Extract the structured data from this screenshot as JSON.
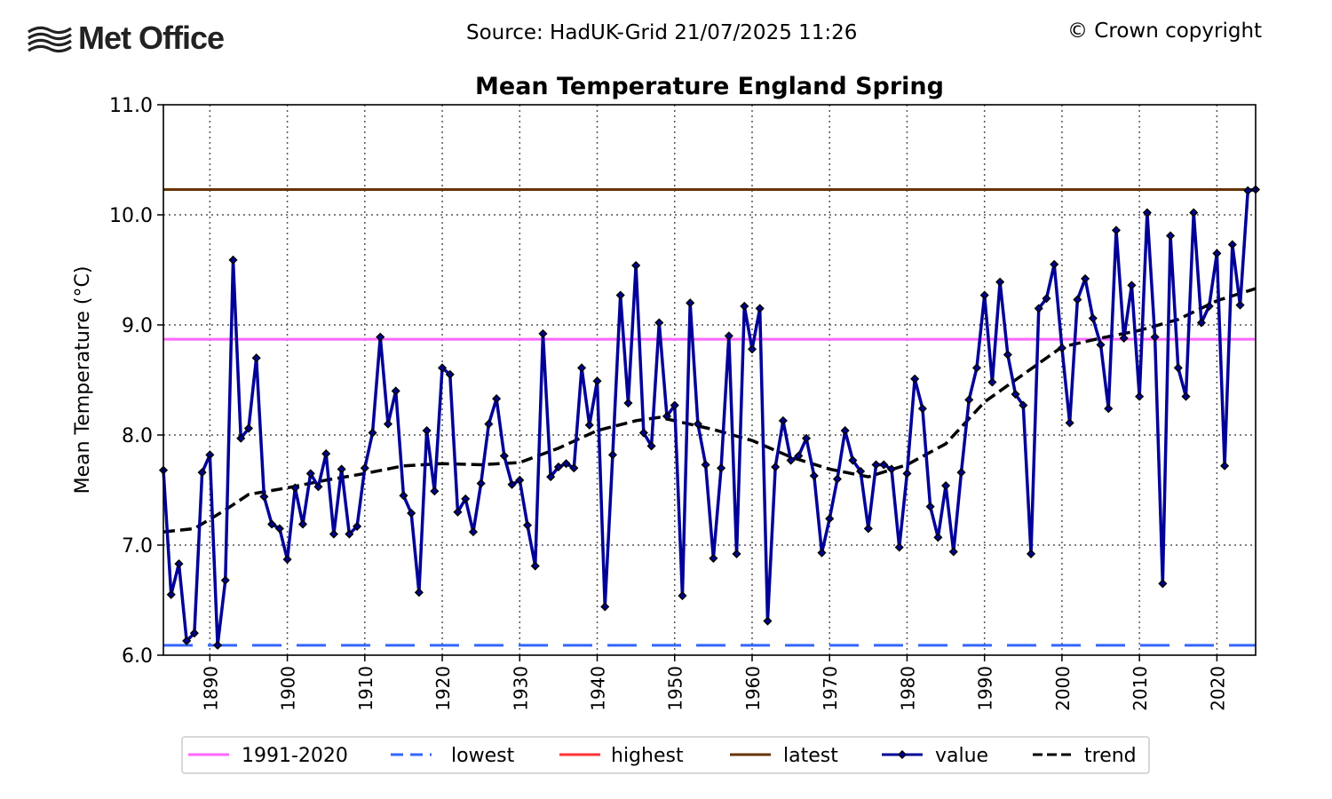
{
  "header": {
    "logo": "Met Office",
    "source": "Source: HadUK-Grid 21/07/2025 11:26",
    "copyright": "© Crown copyright"
  },
  "chart_data": {
    "type": "line",
    "title": "Mean Temperature England Spring",
    "xlabel": "",
    "ylabel": "Mean Temperature (°C)",
    "xlim": [
      1884,
      2025
    ],
    "ylim": [
      6.0,
      11.0
    ],
    "grid": true,
    "xticks": [
      1890,
      1900,
      1910,
      1920,
      1930,
      1940,
      1950,
      1960,
      1970,
      1980,
      1990,
      2000,
      2010,
      2020
    ],
    "yticks": [
      "6.0",
      "7.0",
      "8.0",
      "9.0",
      "10.0",
      "11.0"
    ],
    "legend_position": "bottom",
    "legend": [
      "1991-2020",
      "lowest",
      "highest",
      "latest",
      "value",
      "trend"
    ],
    "reference_lines": {
      "1991-2020": {
        "value": 8.87,
        "color": "#ff66ff",
        "style": "solid"
      },
      "lowest": {
        "value": 6.09,
        "color": "#3366ff",
        "style": "dashed"
      },
      "highest": {
        "value": 10.23,
        "color": "#ff3333",
        "style": "solid"
      },
      "latest": {
        "value": 10.23,
        "color": "#663300",
        "style": "solid"
      }
    },
    "series": [
      {
        "name": "value",
        "color": "#000099",
        "start_year": 1884,
        "values": [
          7.68,
          6.55,
          6.83,
          6.13,
          6.2,
          7.66,
          7.82,
          6.09,
          6.68,
          9.59,
          7.97,
          8.06,
          8.7,
          7.44,
          7.19,
          7.15,
          6.87,
          7.52,
          7.19,
          7.65,
          7.53,
          7.83,
          7.1,
          7.69,
          7.1,
          7.17,
          7.7,
          8.02,
          8.89,
          8.1,
          8.4,
          7.45,
          7.29,
          6.57,
          8.04,
          7.49,
          8.61,
          8.55,
          7.3,
          7.42,
          7.12,
          7.56,
          8.1,
          8.33,
          7.81,
          7.55,
          7.59,
          7.18,
          6.81,
          8.92,
          7.62,
          7.71,
          7.74,
          7.7,
          8.61,
          8.09,
          8.49,
          6.44,
          7.82,
          9.27,
          8.29,
          9.54,
          8.02,
          7.9,
          9.02,
          8.17,
          8.27,
          6.54,
          9.2,
          8.1,
          7.73,
          6.88,
          7.7,
          8.9,
          6.92,
          9.17,
          8.78,
          9.15,
          6.31,
          7.71,
          8.13,
          7.77,
          7.81,
          7.97,
          7.63,
          6.93,
          7.24,
          7.6,
          8.04,
          7.77,
          7.67,
          7.15,
          7.73,
          7.73,
          7.69,
          6.98,
          7.65,
          8.51,
          8.24,
          7.35,
          7.07,
          7.54,
          6.94,
          7.66,
          8.32,
          8.61,
          9.27,
          8.48,
          9.39,
          8.73,
          8.37,
          8.27,
          6.92,
          9.15,
          9.24,
          9.55,
          8.79,
          8.11,
          9.23,
          9.42,
          9.06,
          8.82,
          8.24,
          9.86,
          8.88,
          9.36,
          8.35,
          10.02,
          8.89,
          6.65,
          9.81,
          8.61,
          8.35,
          10.02,
          9.02,
          9.17,
          9.65,
          7.72,
          9.73,
          9.18,
          10.22,
          10.23
        ]
      },
      {
        "name": "trend",
        "color": "#000000",
        "style": "dashed",
        "x": [
          1884,
          1888,
          1892,
          1895,
          1900,
          1905,
          1910,
          1915,
          1920,
          1925,
          1930,
          1935,
          1940,
          1945,
          1948,
          1950,
          1955,
          1960,
          1965,
          1970,
          1975,
          1980,
          1985,
          1990,
          1995,
          2000,
          2005,
          2010,
          2015,
          2020,
          2025
        ],
        "values": [
          7.12,
          7.15,
          7.32,
          7.46,
          7.52,
          7.59,
          7.65,
          7.72,
          7.74,
          7.73,
          7.75,
          7.88,
          8.04,
          8.13,
          8.16,
          8.13,
          8.05,
          7.95,
          7.8,
          7.69,
          7.62,
          7.73,
          7.92,
          8.3,
          8.55,
          8.8,
          8.88,
          8.95,
          9.05,
          9.22,
          9.33
        ]
      }
    ]
  }
}
